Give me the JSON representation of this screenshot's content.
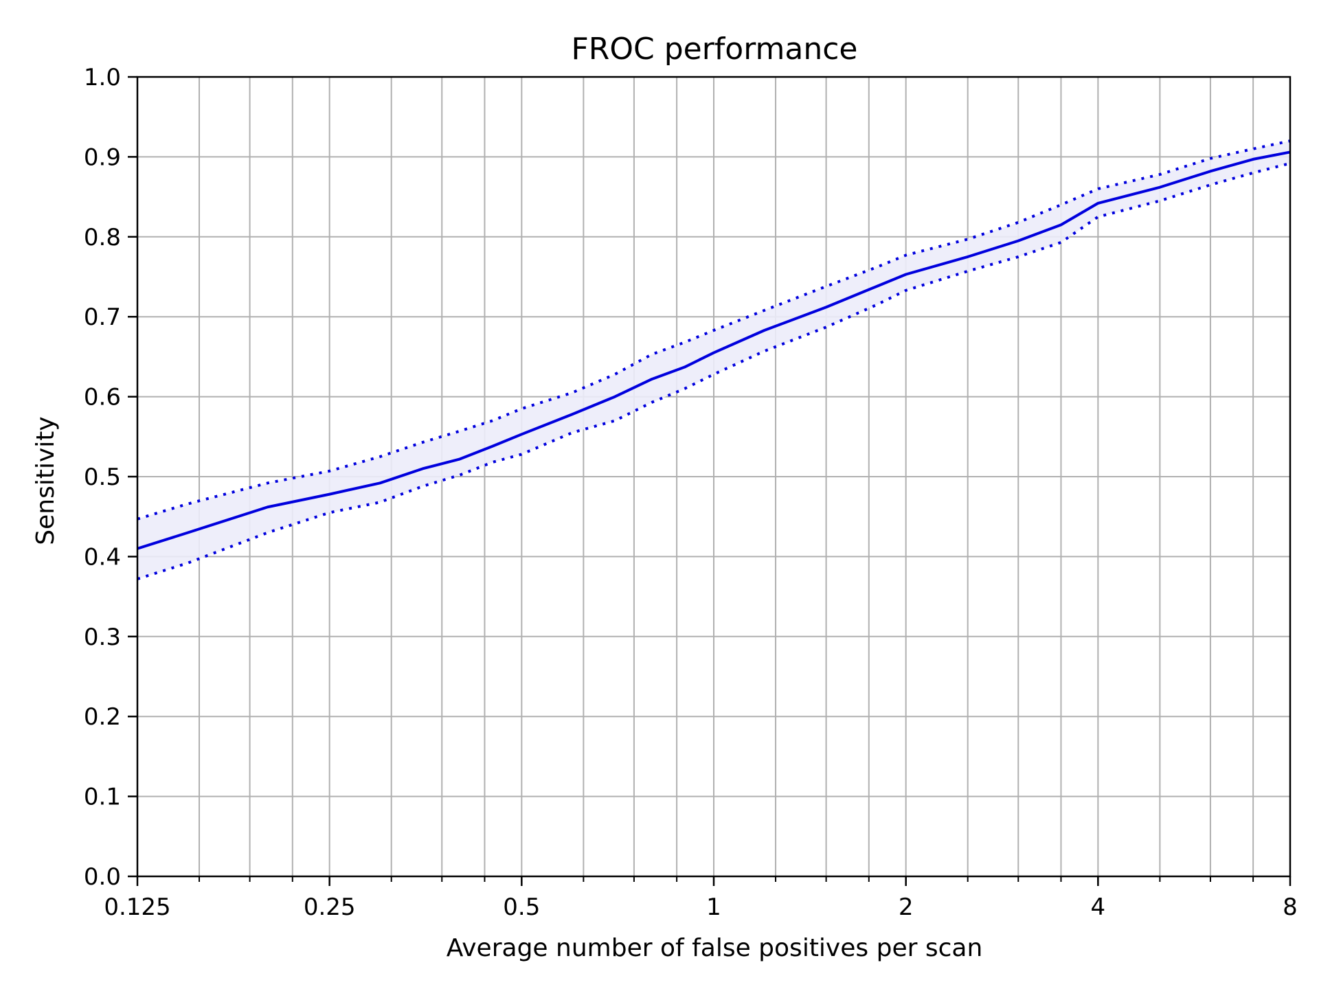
{
  "chart_data": {
    "type": "line",
    "title": "FROC performance",
    "xlabel": "Average number of false positives per scan",
    "ylabel": "Sensitivity",
    "x_scale": "log2",
    "xlim": [
      0.125,
      8
    ],
    "ylim": [
      0.0,
      1.0
    ],
    "xticks": [
      0.125,
      0.25,
      0.5,
      1,
      2,
      4,
      8
    ],
    "xtick_labels": [
      "0.125",
      "0.25",
      "0.5",
      "1",
      "2",
      "4",
      "8"
    ],
    "yticks": [
      0.0,
      0.1,
      0.2,
      0.3,
      0.4,
      0.5,
      0.6,
      0.7,
      0.8,
      0.9,
      1.0
    ],
    "ytick_labels": [
      "0.0",
      "0.1",
      "0.2",
      "0.3",
      "0.4",
      "0.5",
      "0.6",
      "0.7",
      "0.8",
      "0.9",
      "1.0"
    ],
    "grid": true,
    "legend": "none",
    "colors": {
      "line": "#0000dd",
      "band": "#ececfa",
      "grid": "#b0b0b0",
      "axes": "#000000"
    },
    "x": [
      0.125,
      0.15,
      0.2,
      0.25,
      0.3,
      0.35,
      0.4,
      0.45,
      0.5,
      0.6,
      0.7,
      0.8,
      0.9,
      1,
      1.2,
      1.5,
      1.8,
      2,
      2.5,
      3,
      3.5,
      4,
      5,
      6,
      7,
      8
    ],
    "series": [
      {
        "style": "solid",
        "values": [
          0.41,
          0.43,
          0.462,
          0.478,
          0.492,
          0.51,
          0.522,
          0.538,
          0.553,
          0.578,
          0.6,
          0.622,
          0.637,
          0.655,
          0.683,
          0.712,
          0.738,
          0.753,
          0.775,
          0.795,
          0.815,
          0.842,
          0.862,
          0.882,
          0.897,
          0.906
        ]
      },
      {
        "style": "dotted",
        "values": [
          0.447,
          0.466,
          0.492,
          0.507,
          0.525,
          0.543,
          0.557,
          0.57,
          0.585,
          0.605,
          0.628,
          0.653,
          0.668,
          0.683,
          0.708,
          0.738,
          0.762,
          0.777,
          0.797,
          0.818,
          0.84,
          0.86,
          0.878,
          0.898,
          0.91,
          0.92
        ]
      },
      {
        "style": "dotted",
        "values": [
          0.372,
          0.392,
          0.43,
          0.455,
          0.468,
          0.488,
          0.502,
          0.518,
          0.528,
          0.555,
          0.57,
          0.593,
          0.61,
          0.628,
          0.657,
          0.687,
          0.715,
          0.733,
          0.757,
          0.775,
          0.793,
          0.825,
          0.845,
          0.865,
          0.88,
          0.892
        ]
      }
    ]
  }
}
